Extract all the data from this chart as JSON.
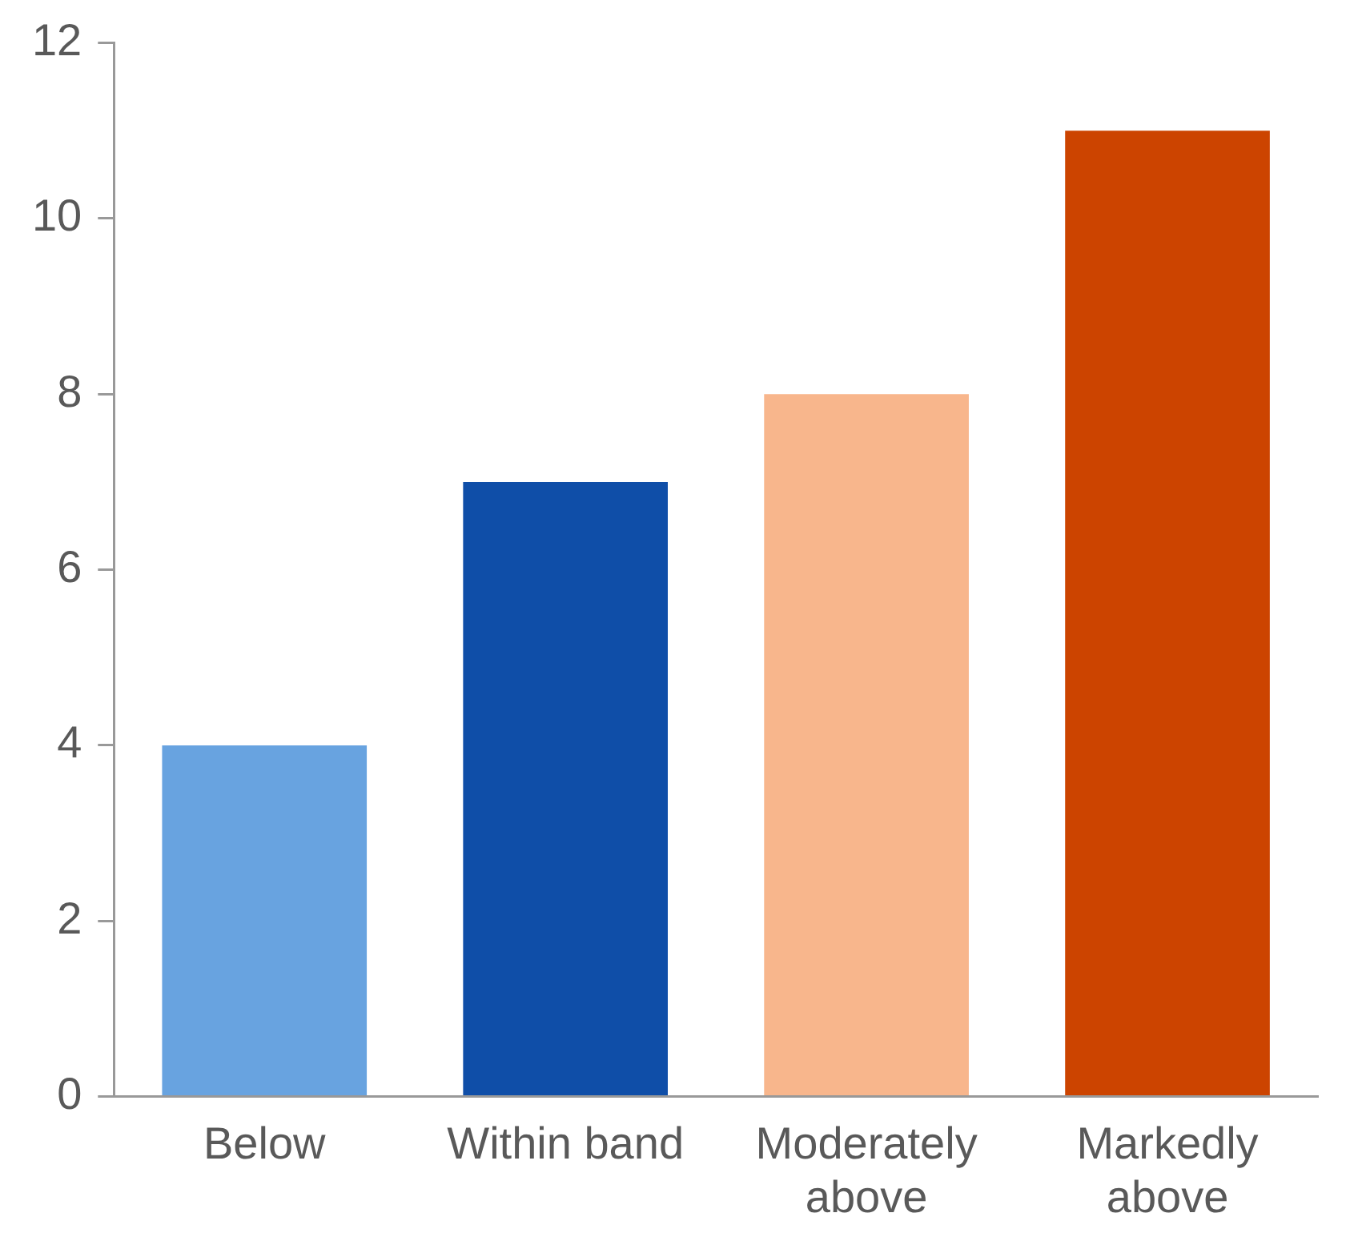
{
  "chart_data": {
    "type": "bar",
    "categories": [
      "Below",
      "Within band",
      "Moderately above",
      "Markedly above"
    ],
    "values": [
      4,
      7,
      8,
      11
    ],
    "colors": [
      "#68a3e0",
      "#0f4ea8",
      "#f8b68c",
      "#cc4400"
    ],
    "ylim": [
      0,
      12
    ],
    "yticks": [
      0,
      2,
      4,
      6,
      8,
      10,
      12
    ],
    "grid": false,
    "legend": false
  }
}
